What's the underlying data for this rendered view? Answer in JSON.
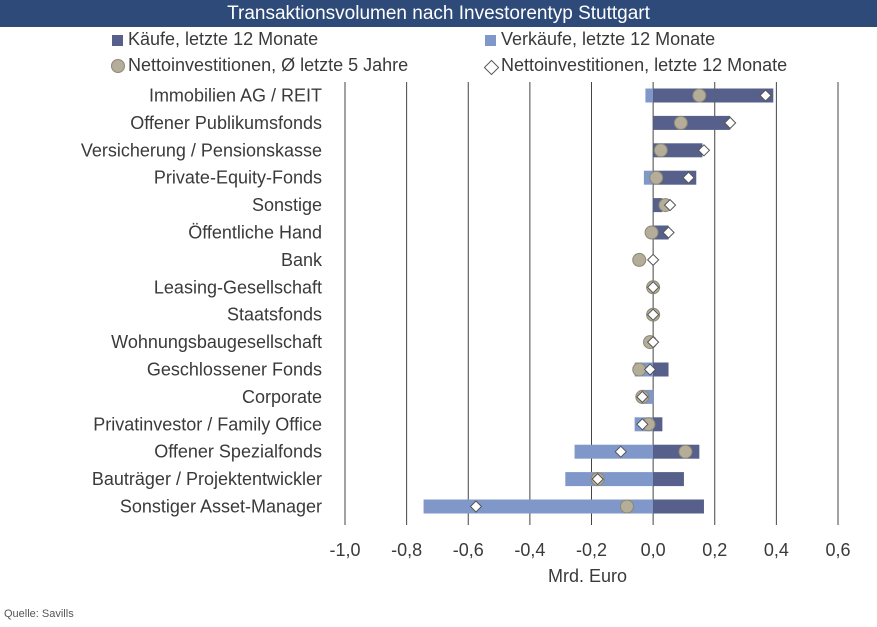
{
  "chart_data": {
    "type": "bar",
    "title": "Transaktionsvolumen nach Investorentyp Stuttgart",
    "xlabel": "Mrd. Euro",
    "xlim": [
      -1.0,
      0.6
    ],
    "xticks": [
      "-1,0",
      "-0,8",
      "-0,6",
      "-0,4",
      "-0,2",
      "0,0",
      "0,2",
      "0,4",
      "0,6"
    ],
    "xtick_values": [
      -1.0,
      -0.8,
      -0.6,
      -0.4,
      -0.2,
      0.0,
      0.2,
      0.4,
      0.6
    ],
    "grid": "vertical",
    "legend_position": "top",
    "categories": [
      "Immobilien AG / REIT",
      "Offener Publikumsfonds",
      "Versicherung / Pensionskasse",
      "Private-Equity-Fonds",
      "Sonstige",
      "Öffentliche Hand",
      "Bank",
      "Leasing-Gesellschaft",
      "Staatsfonds",
      "Wohnungsbaugesellschaft",
      "Geschlossener Fonds",
      "Corporate",
      "Privatinvestor / Family Office",
      "Offener Spezialfonds",
      "Bauträger / Projektentwickler",
      "Sonstiger Asset-Manager"
    ],
    "series": [
      {
        "name": "Käufe, letzte 12 Monate",
        "kind": "bar",
        "color": "#56608a",
        "values": [
          0.39,
          0.25,
          0.16,
          0.14,
          0.03,
          0.05,
          0.0,
          0.0,
          0.0,
          0.0,
          0.05,
          0.0,
          0.03,
          0.15,
          0.1,
          0.165
        ]
      },
      {
        "name": "Verkäufe, letzte 12 Monate",
        "kind": "bar",
        "color": "#7f98c9",
        "values": [
          -0.025,
          0.0,
          0.0,
          -0.03,
          0.0,
          0.0,
          0.0,
          0.0,
          0.0,
          0.0,
          -0.06,
          -0.04,
          -0.06,
          -0.255,
          -0.285,
          -0.745
        ]
      },
      {
        "name": "Nettoinvestitionen, Ø letzte 5 Jahre",
        "kind": "circle",
        "color": "#b4ad9a",
        "values": [
          0.15,
          0.09,
          0.025,
          0.01,
          0.04,
          -0.005,
          -0.045,
          0.0,
          0.0,
          -0.01,
          -0.045,
          -0.035,
          -0.015,
          0.105,
          -0.18,
          -0.085
        ]
      },
      {
        "name": "Nettoinvestitionen, letzte 12 Monate",
        "kind": "diamond",
        "color": "#ffffff",
        "values": [
          0.365,
          0.25,
          0.165,
          0.115,
          0.055,
          0.05,
          0.0,
          0.0,
          0.0,
          0.0,
          -0.01,
          -0.035,
          -0.035,
          -0.105,
          -0.18,
          -0.575
        ]
      }
    ]
  },
  "source": "Quelle: Savills"
}
